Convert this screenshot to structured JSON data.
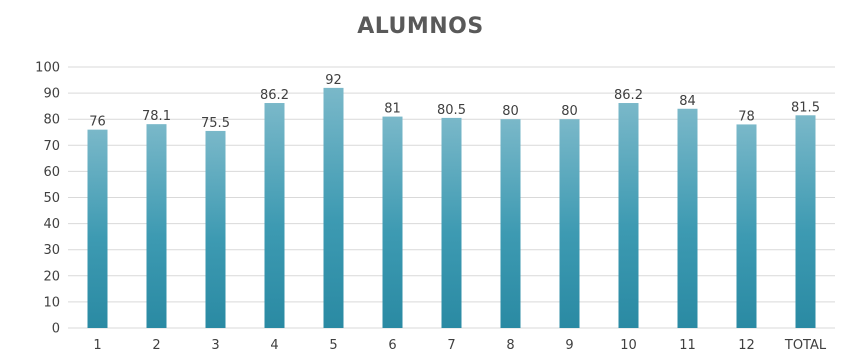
{
  "chart_data": {
    "type": "bar",
    "title": "ALUMNOS",
    "xlabel": "",
    "ylabel": "",
    "categories": [
      "1",
      "2",
      "3",
      "4",
      "5",
      "6",
      "7",
      "8",
      "9",
      "10",
      "11",
      "12",
      "TOTAL"
    ],
    "values": [
      76,
      78.1,
      75.5,
      86.2,
      92,
      81,
      80.5,
      80,
      80,
      86.2,
      84,
      78,
      81.5
    ],
    "value_labels": [
      "76",
      "78.1",
      "75.5",
      "86.2",
      "92",
      "81",
      "80.5",
      "80",
      "80",
      "86.2",
      "84",
      "78",
      "81.5"
    ],
    "ylim": [
      0,
      100
    ],
    "yticks": [
      0,
      10,
      20,
      30,
      40,
      50,
      60,
      70,
      80,
      90,
      100
    ],
    "grid": true,
    "legend": "none",
    "colors": {
      "bar_top": "#7ab8c9",
      "bar_mid": "#3d9ab2",
      "bar_bottom": "#2a8aa3",
      "grid": "#d9d9d9",
      "text": "#404040",
      "title": "#595959"
    }
  }
}
